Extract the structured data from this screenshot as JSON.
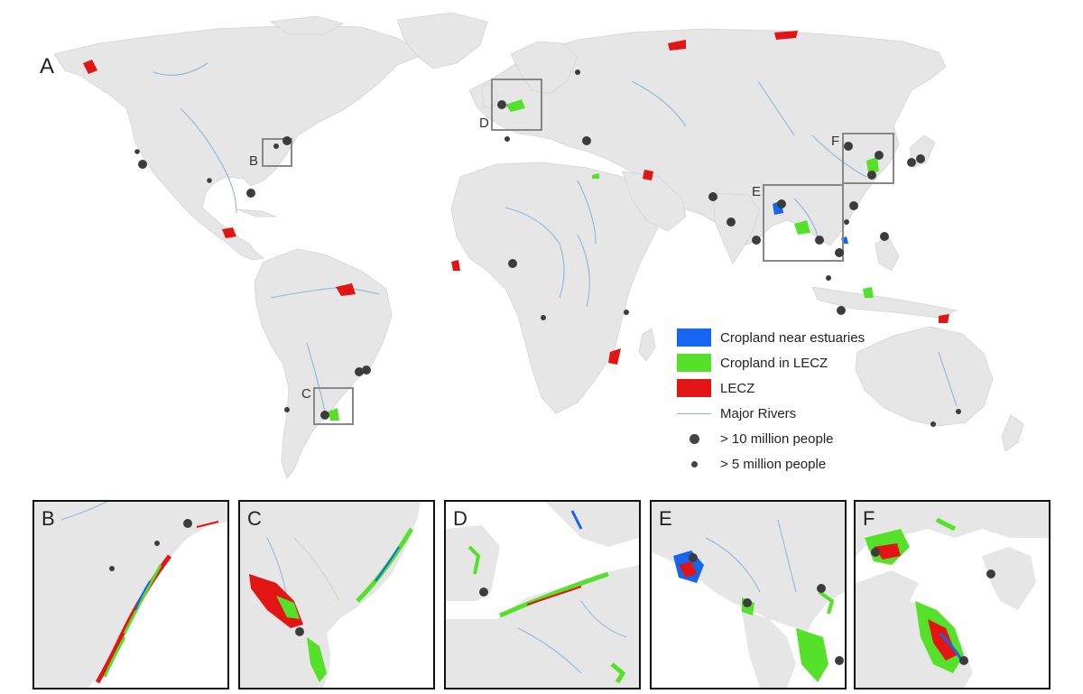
{
  "panels": {
    "main": "A",
    "insets": [
      "B",
      "C",
      "D",
      "E",
      "F"
    ]
  },
  "box_labels": [
    "B",
    "C",
    "D",
    "E",
    "F"
  ],
  "legend": {
    "cropland_estuaries": {
      "label": "Cropland near estuaries",
      "color": "#1565f0"
    },
    "cropland_lecz": {
      "label": "Cropland in LECZ",
      "color": "#55e02a"
    },
    "lecz": {
      "label": "LECZ",
      "color": "#e31414"
    },
    "rivers": {
      "label": "Major Rivers",
      "color": "#8bb7da"
    },
    "city_10m": {
      "label": "> 10 million people"
    },
    "city_5m": {
      "label": "> 5 million people"
    }
  },
  "colors": {
    "land": "#e6e6e6",
    "ocean": "#ffffff",
    "country_border": "#cfcfcf",
    "city_marker": "#3c3c3c"
  }
}
